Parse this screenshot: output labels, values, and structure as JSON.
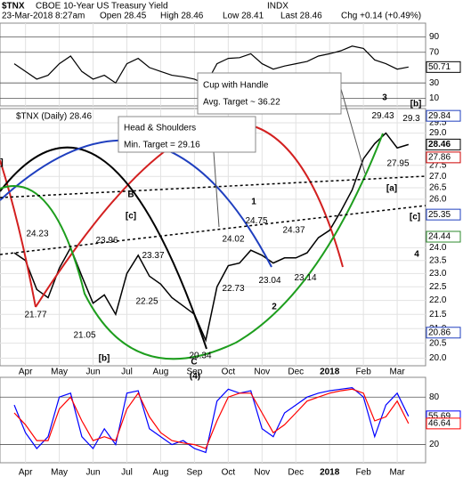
{
  "header": {
    "symbol": "$TNX",
    "name": "CBOE 10-Year US Treasury Yield",
    "exchange": "INDX",
    "date": "23-Mar-2018 8:27am",
    "open": "Open 28.45",
    "high": "High 28.46",
    "low": "Low 28.41",
    "last": "Last 28.46",
    "change": "Chg +0.14 (+0.49%)"
  },
  "chart_data": [
    {
      "type": "line",
      "series": [
        {
          "color": "#000000",
          "values": [
            55,
            45,
            35,
            40,
            55,
            65,
            45,
            35,
            40,
            30,
            55,
            62,
            50,
            45,
            40,
            38,
            35,
            28,
            55,
            62,
            63,
            68,
            55,
            48,
            52,
            55,
            58,
            65,
            68,
            72,
            78,
            75,
            60,
            55,
            48,
            50.71
          ]
        }
      ],
      "ylim": [
        0,
        108
      ],
      "yticks": [
        10,
        30,
        70,
        90
      ],
      "grid": true
    },
    {
      "type": "line",
      "log_scale": true,
      "legend": "$TNX (Daily) 28.46",
      "categories": [
        null,
        "Apr",
        null,
        null,
        "May",
        null,
        null,
        "Jun",
        null,
        null,
        "Jul",
        null,
        null,
        "Aug",
        null,
        null,
        "Sep",
        null,
        null,
        "Oct",
        null,
        null,
        "Nov",
        null,
        null,
        "Dec",
        null,
        null,
        "2018",
        null,
        null,
        "Feb",
        null,
        null,
        "Mar",
        null
      ],
      "series": [
        {
          "color": "#000000",
          "values": [
            23.8,
            23.5,
            22.4,
            22.1,
            23.2,
            24.0,
            22.9,
            21.9,
            22.2,
            21.5,
            23.0,
            23.7,
            22.9,
            22.6,
            22.1,
            21.8,
            21.5,
            20.6,
            22.5,
            23.3,
            23.4,
            23.9,
            23.7,
            23.4,
            23.6,
            23.6,
            23.8,
            24.4,
            24.7,
            25.5,
            26.4,
            27.8,
            28.5,
            29.0,
            28.3,
            28.46
          ]
        }
      ],
      "ylim": [
        19.75,
        30.2
      ],
      "yticks": [
        {
          "value": 20,
          "label": "20.0"
        },
        20.5,
        {
          "value": 21,
          "label": "21.0"
        },
        21.5,
        {
          "value": 22,
          "label": "22.0"
        },
        22.5,
        {
          "value": 23,
          "label": "23.0"
        },
        23.5,
        {
          "value": 24,
          "label": "24.0"
        },
        {
          "value": 26,
          "label": "26.0"
        },
        26.5,
        {
          "value": 27,
          "label": "27.0"
        },
        27.5,
        {
          "value": 29,
          "label": "29.0"
        },
        29.5
      ],
      "grid": true,
      "levels": [
        {
          "value": 29.84,
          "color": "#1f3fbf"
        },
        {
          "value": 27.86,
          "color": "#cc0000"
        },
        {
          "value": 25.35,
          "color": "#1f3fbf"
        },
        {
          "value": 24.44,
          "color": "#2e8b2e"
        },
        {
          "value": 20.86,
          "color": "#1f3fbf"
        }
      ],
      "pivots": [
        24.23,
        21.77,
        23.96,
        23.37,
        22.25,
        21.05,
        20.34,
        24.02,
        24.75,
        22.73,
        23.04,
        24.37,
        23.14,
        29.43,
        29.3,
        27.95
      ],
      "wave_labels": [
        {
          "text": "3",
          "color": "#7b1fa2"
        },
        {
          "text": "[b]",
          "color": "#cc0000"
        },
        {
          "text": "1",
          "color": "#7b1fa2"
        },
        {
          "text": "B",
          "color": "#7b1fa2"
        },
        {
          "text": "[c]",
          "color": "#cc0000"
        },
        {
          "text": "2",
          "color": "#7b1fa2"
        },
        {
          "text": "[a]",
          "color": "#cc0000"
        },
        {
          "text": "[c]",
          "color": "#cc0000"
        },
        {
          "text": "4",
          "color": "#7b1fa2"
        },
        {
          "text": "[b]",
          "color": "#cc0000"
        },
        {
          "text": "C",
          "color": "#7b1fa2"
        },
        {
          "text": "(4)",
          "color": "#000000"
        },
        {
          "text": "]",
          "color": "#cc0000"
        }
      ],
      "callouts": [
        [
          "Cup with Handle",
          "Avg. Target ~ 36.22"
        ],
        [
          "Head & Shoulders",
          "Min. Target = 29.16"
        ]
      ]
    },
    {
      "type": "line",
      "series": [
        {
          "color": "#0000ff",
          "values": [
            70,
            35,
            15,
            30,
            80,
            85,
            30,
            15,
            40,
            20,
            85,
            88,
            40,
            30,
            20,
            25,
            15,
            10,
            75,
            90,
            85,
            88,
            40,
            30,
            60,
            70,
            80,
            85,
            88,
            90,
            92,
            80,
            30,
            70,
            85,
            55.69
          ]
        },
        {
          "color": "#ff0000",
          "values": [
            60,
            45,
            25,
            25,
            65,
            80,
            50,
            25,
            30,
            25,
            65,
            85,
            55,
            35,
            25,
            22,
            20,
            15,
            50,
            80,
            85,
            85,
            60,
            35,
            45,
            60,
            75,
            80,
            85,
            88,
            90,
            85,
            50,
            55,
            75,
            46.64
          ]
        }
      ],
      "ylim": [
        -3,
        105
      ],
      "yticks": [
        20,
        80
      ],
      "grid": true
    }
  ]
}
